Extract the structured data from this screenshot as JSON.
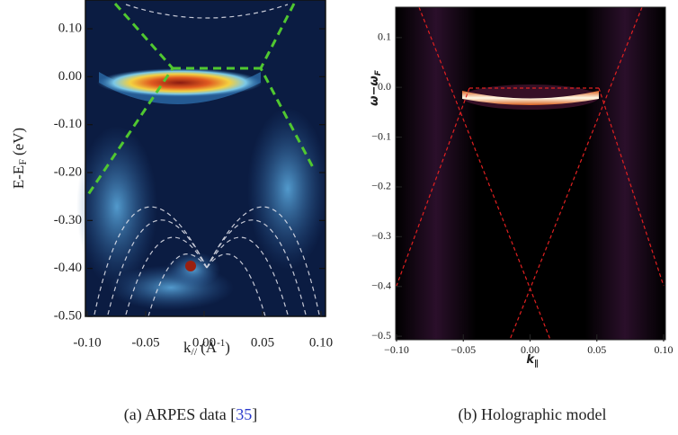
{
  "chart_data": [
    {
      "type": "heatmap",
      "ylabel": {
        "main": "E-E",
        "sub": "F",
        "unit": "(eV)"
      },
      "xlabel": {
        "main": "k",
        "sub": "//",
        "unit": "(Å",
        "sup": "-1",
        "close": ")"
      },
      "xlim": [
        -0.1,
        0.1
      ],
      "ylim": [
        -0.5,
        0.16
      ],
      "xticks": [
        {
          "value": -0.1,
          "label": "-0.10"
        },
        {
          "value": -0.05,
          "label": "-0.05"
        },
        {
          "value": 0,
          "label": "0.00"
        },
        {
          "value": 0.05,
          "label": "0.05"
        },
        {
          "value": 0.1,
          "label": "0.10"
        }
      ],
      "yticks": [
        {
          "value": 0.1,
          "label": "0.10"
        },
        {
          "value": 0,
          "label": "0.00"
        },
        {
          "value": -0.1,
          "label": "-0.10"
        },
        {
          "value": -0.2,
          "label": "-0.20"
        },
        {
          "value": -0.3,
          "label": "-0.30"
        },
        {
          "value": -0.4,
          "label": "-0.40"
        },
        {
          "value": -0.5,
          "label": "-0.50"
        }
      ],
      "caption": [
        "(a) ARPES data [",
        "35",
        "]"
      ]
    },
    {
      "type": "heatmap",
      "ylabel": {
        "main": "ω−ω",
        "sub": "F"
      },
      "xlabel": {
        "main": "k",
        "sub": "∥"
      },
      "xlim": [
        -0.1,
        0.1
      ],
      "ylim": [
        -0.507,
        0.161
      ],
      "xticks": [
        {
          "value": -0.1,
          "label": "−0.10"
        },
        {
          "value": -0.05,
          "label": "−0.05"
        },
        {
          "value": 0,
          "label": "0.00"
        },
        {
          "value": 0.05,
          "label": "0.05"
        },
        {
          "value": 0.1,
          "label": "0.10"
        }
      ],
      "yticks": [
        {
          "value": 0.1,
          "label": "0.1"
        },
        {
          "value": 0,
          "label": "0.0"
        },
        {
          "value": -0.1,
          "label": "−0.1"
        },
        {
          "value": -0.2,
          "label": "−0.2"
        },
        {
          "value": -0.3,
          "label": "−0.3"
        },
        {
          "value": -0.4,
          "label": "−0.4"
        },
        {
          "value": -0.5,
          "label": "−0.5"
        }
      ],
      "caption": [
        "(b) Holographic model"
      ]
    }
  ]
}
